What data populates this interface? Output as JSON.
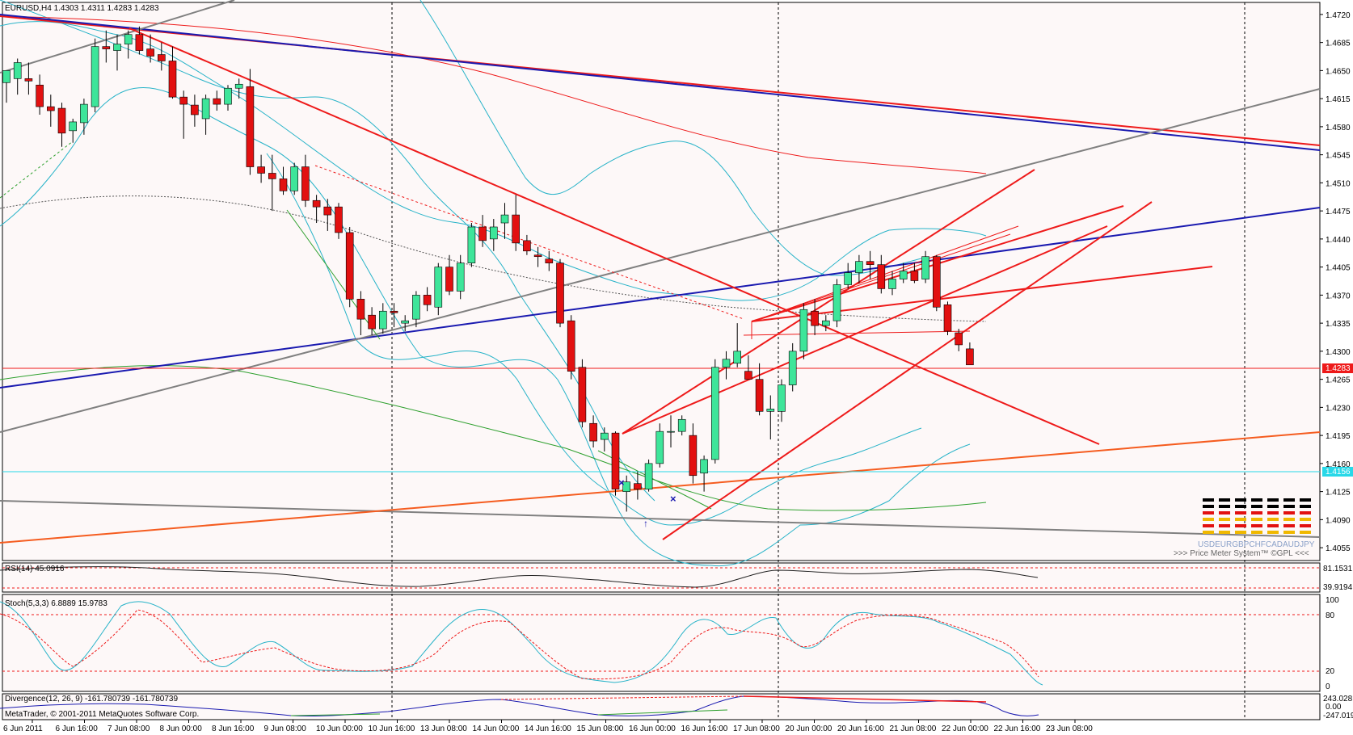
{
  "colors": {
    "background": "#ffffff",
    "grid": "#000000",
    "bull_candle": "#3ee59a",
    "bear_candle": "#e21010",
    "red_line": "#ee1a1a",
    "blue_line": "#1a1ab0",
    "gray_line": "#808080",
    "cyan_line": "#27b3c8",
    "green_line": "#2ea02e",
    "orange_line": "#f55c1f",
    "black_line": "#202020"
  },
  "chart_data": [
    {
      "type": "candlestick",
      "title": "EURUSD,H4  1.4303 1.4311 1.4283 1.4283",
      "symbol": "EURUSD",
      "timeframe": "H4",
      "ohlc_header": [
        1.4303,
        1.4311,
        1.4283,
        1.4283
      ],
      "last_price": "1.4283",
      "ylim": [
        1.4039,
        1.4735
      ],
      "y_ticks": [
        "1.4720",
        "1.4685",
        "1.4650",
        "1.4615",
        "1.4580",
        "1.4545",
        "1.4510",
        "1.4475",
        "1.4440",
        "1.4405",
        "1.4370",
        "1.4335",
        "1.4300",
        "1.4265",
        "1.4230",
        "1.4195",
        "1.4160",
        "1.4125",
        "1.4090",
        "1.4055"
      ],
      "x_labels": [
        "6 Jun 2011",
        "6 Jun 16:00",
        "7 Jun 08:00",
        "8 Jun 00:00",
        "8 Jun 16:00",
        "9 Jun 08:00",
        "10 Jun 00:00",
        "10 Jun 16:00",
        "13 Jun 08:00",
        "14 Jun 00:00",
        "14 Jun 16:00",
        "15 Jun 08:00",
        "16 Jun 00:00",
        "16 Jun 16:00",
        "17 Jun 08:00",
        "20 Jun 00:00",
        "20 Jun 16:00",
        "21 Jun 08:00",
        "22 Jun 00:00",
        "22 Jun 16:00",
        "23 Jun 08:00"
      ],
      "period_separators": [
        "6 Jun 16:00 – 7 Jun 08:00",
        "10 Jun 16:00",
        "17 Jun 08:00 – 20 Jun 00:00",
        "23 Jun"
      ],
      "candles": [
        {
          "o": 1.4635,
          "h": 1.465,
          "l": 1.461,
          "c": 1.465
        },
        {
          "o": 1.464,
          "h": 1.4665,
          "l": 1.462,
          "c": 1.466
        },
        {
          "o": 1.464,
          "h": 1.466,
          "l": 1.462,
          "c": 1.4637
        },
        {
          "o": 1.4632,
          "h": 1.4645,
          "l": 1.4595,
          "c": 1.4605
        },
        {
          "o": 1.4605,
          "h": 1.462,
          "l": 1.458,
          "c": 1.46
        },
        {
          "o": 1.4603,
          "h": 1.461,
          "l": 1.4555,
          "c": 1.4572
        },
        {
          "o": 1.4575,
          "h": 1.459,
          "l": 1.456,
          "c": 1.4586
        },
        {
          "o": 1.4585,
          "h": 1.4615,
          "l": 1.457,
          "c": 1.4608
        },
        {
          "o": 1.4605,
          "h": 1.469,
          "l": 1.4598,
          "c": 1.468
        },
        {
          "o": 1.468,
          "h": 1.47,
          "l": 1.466,
          "c": 1.4677
        },
        {
          "o": 1.4675,
          "h": 1.4695,
          "l": 1.465,
          "c": 1.4683
        },
        {
          "o": 1.4683,
          "h": 1.47,
          "l": 1.4665,
          "c": 1.4695
        },
        {
          "o": 1.4695,
          "h": 1.4705,
          "l": 1.467,
          "c": 1.4675
        },
        {
          "o": 1.4677,
          "h": 1.4695,
          "l": 1.466,
          "c": 1.4668
        },
        {
          "o": 1.467,
          "h": 1.4685,
          "l": 1.465,
          "c": 1.4662
        },
        {
          "o": 1.4662,
          "h": 1.468,
          "l": 1.4615,
          "c": 1.4617
        },
        {
          "o": 1.4617,
          "h": 1.4625,
          "l": 1.4565,
          "c": 1.4608
        },
        {
          "o": 1.4607,
          "h": 1.462,
          "l": 1.458,
          "c": 1.4595
        },
        {
          "o": 1.459,
          "h": 1.462,
          "l": 1.457,
          "c": 1.4615
        },
        {
          "o": 1.4615,
          "h": 1.4625,
          "l": 1.46,
          "c": 1.4608
        },
        {
          "o": 1.4608,
          "h": 1.4632,
          "l": 1.46,
          "c": 1.4628
        },
        {
          "o": 1.4628,
          "h": 1.464,
          "l": 1.4615,
          "c": 1.4633
        },
        {
          "o": 1.463,
          "h": 1.4652,
          "l": 1.452,
          "c": 1.453
        },
        {
          "o": 1.453,
          "h": 1.4545,
          "l": 1.451,
          "c": 1.4522
        },
        {
          "o": 1.4522,
          "h": 1.4545,
          "l": 1.4475,
          "c": 1.4515
        },
        {
          "o": 1.4515,
          "h": 1.453,
          "l": 1.4495,
          "c": 1.45
        },
        {
          "o": 1.45,
          "h": 1.4535,
          "l": 1.4495,
          "c": 1.453
        },
        {
          "o": 1.453,
          "h": 1.4545,
          "l": 1.448,
          "c": 1.4488
        },
        {
          "o": 1.4488,
          "h": 1.4495,
          "l": 1.446,
          "c": 1.448
        },
        {
          "o": 1.448,
          "h": 1.449,
          "l": 1.445,
          "c": 1.447
        },
        {
          "o": 1.448,
          "h": 1.4485,
          "l": 1.444,
          "c": 1.4448
        },
        {
          "o": 1.4448,
          "h": 1.4455,
          "l": 1.4355,
          "c": 1.4365
        },
        {
          "o": 1.4365,
          "h": 1.4375,
          "l": 1.432,
          "c": 1.434
        },
        {
          "o": 1.4345,
          "h": 1.4355,
          "l": 1.432,
          "c": 1.4328
        },
        {
          "o": 1.4328,
          "h": 1.436,
          "l": 1.4322,
          "c": 1.435
        },
        {
          "o": 1.435,
          "h": 1.436,
          "l": 1.433,
          "c": 1.4348
        },
        {
          "o": 1.4335,
          "h": 1.4345,
          "l": 1.4325,
          "c": 1.4338
        },
        {
          "o": 1.434,
          "h": 1.4375,
          "l": 1.433,
          "c": 1.437
        },
        {
          "o": 1.437,
          "h": 1.438,
          "l": 1.435,
          "c": 1.4358
        },
        {
          "o": 1.4355,
          "h": 1.441,
          "l": 1.4345,
          "c": 1.4405
        },
        {
          "o": 1.4405,
          "h": 1.442,
          "l": 1.437,
          "c": 1.4375
        },
        {
          "o": 1.4375,
          "h": 1.442,
          "l": 1.4365,
          "c": 1.441
        },
        {
          "o": 1.441,
          "h": 1.446,
          "l": 1.4405,
          "c": 1.4455
        },
        {
          "o": 1.4455,
          "h": 1.447,
          "l": 1.443,
          "c": 1.4438
        },
        {
          "o": 1.444,
          "h": 1.4465,
          "l": 1.4425,
          "c": 1.4455
        },
        {
          "o": 1.446,
          "h": 1.4485,
          "l": 1.444,
          "c": 1.447
        },
        {
          "o": 1.447,
          "h": 1.4495,
          "l": 1.4425,
          "c": 1.4435
        },
        {
          "o": 1.4438,
          "h": 1.4445,
          "l": 1.442,
          "c": 1.4425
        },
        {
          "o": 1.442,
          "h": 1.443,
          "l": 1.4405,
          "c": 1.4418
        },
        {
          "o": 1.4415,
          "h": 1.4425,
          "l": 1.44,
          "c": 1.441
        },
        {
          "o": 1.441,
          "h": 1.4415,
          "l": 1.433,
          "c": 1.4335
        },
        {
          "o": 1.4338,
          "h": 1.4345,
          "l": 1.4265,
          "c": 1.4275
        },
        {
          "o": 1.428,
          "h": 1.429,
          "l": 1.4205,
          "c": 1.4212
        },
        {
          "o": 1.421,
          "h": 1.422,
          "l": 1.418,
          "c": 1.4188
        },
        {
          "o": 1.419,
          "h": 1.4205,
          "l": 1.4175,
          "c": 1.4198
        },
        {
          "o": 1.4198,
          "h": 1.42,
          "l": 1.412,
          "c": 1.4128
        },
        {
          "o": 1.4125,
          "h": 1.4145,
          "l": 1.41,
          "c": 1.4137
        },
        {
          "o": 1.4135,
          "h": 1.415,
          "l": 1.4115,
          "c": 1.4128
        },
        {
          "o": 1.4128,
          "h": 1.4165,
          "l": 1.4125,
          "c": 1.416
        },
        {
          "o": 1.416,
          "h": 1.421,
          "l": 1.4155,
          "c": 1.42
        },
        {
          "o": 1.42,
          "h": 1.422,
          "l": 1.418,
          "c": 1.42
        },
        {
          "o": 1.42,
          "h": 1.422,
          "l": 1.4195,
          "c": 1.4215
        },
        {
          "o": 1.4195,
          "h": 1.421,
          "l": 1.4135,
          "c": 1.4145
        },
        {
          "o": 1.4148,
          "h": 1.417,
          "l": 1.4125,
          "c": 1.4165
        },
        {
          "o": 1.4165,
          "h": 1.429,
          "l": 1.416,
          "c": 1.428
        },
        {
          "o": 1.428,
          "h": 1.43,
          "l": 1.4265,
          "c": 1.429
        },
        {
          "o": 1.4285,
          "h": 1.4335,
          "l": 1.428,
          "c": 1.43
        },
        {
          "o": 1.4275,
          "h": 1.4295,
          "l": 1.4265,
          "c": 1.4265
        },
        {
          "o": 1.4265,
          "h": 1.4285,
          "l": 1.422,
          "c": 1.4225
        },
        {
          "o": 1.4225,
          "h": 1.4245,
          "l": 1.419,
          "c": 1.4228
        },
        {
          "o": 1.4225,
          "h": 1.4265,
          "l": 1.4212,
          "c": 1.4258
        },
        {
          "o": 1.4258,
          "h": 1.431,
          "l": 1.425,
          "c": 1.43
        },
        {
          "o": 1.43,
          "h": 1.436,
          "l": 1.429,
          "c": 1.4352
        },
        {
          "o": 1.435,
          "h": 1.4365,
          "l": 1.432,
          "c": 1.4332
        },
        {
          "o": 1.4332,
          "h": 1.4345,
          "l": 1.4325,
          "c": 1.4338
        },
        {
          "o": 1.4338,
          "h": 1.439,
          "l": 1.433,
          "c": 1.4383
        },
        {
          "o": 1.4383,
          "h": 1.441,
          "l": 1.4378,
          "c": 1.4398
        },
        {
          "o": 1.4398,
          "h": 1.442,
          "l": 1.4385,
          "c": 1.4412
        },
        {
          "o": 1.4412,
          "h": 1.4425,
          "l": 1.439,
          "c": 1.4408
        },
        {
          "o": 1.4408,
          "h": 1.442,
          "l": 1.4372,
          "c": 1.4378
        },
        {
          "o": 1.4378,
          "h": 1.44,
          "l": 1.437,
          "c": 1.439
        },
        {
          "o": 1.439,
          "h": 1.441,
          "l": 1.4385,
          "c": 1.44
        },
        {
          "o": 1.44,
          "h": 1.441,
          "l": 1.4385,
          "c": 1.4388
        },
        {
          "o": 1.439,
          "h": 1.4425,
          "l": 1.4385,
          "c": 1.4418
        },
        {
          "o": 1.4418,
          "h": 1.442,
          "l": 1.435,
          "c": 1.4355
        },
        {
          "o": 1.4358,
          "h": 1.4362,
          "l": 1.432,
          "c": 1.4325
        },
        {
          "o": 1.4323,
          "h": 1.4328,
          "l": 1.43,
          "c": 1.4308
        },
        {
          "o": 1.4303,
          "h": 1.4311,
          "l": 1.4283,
          "c": 1.4283
        }
      ]
    },
    {
      "type": "line",
      "title": "RSI(14) 45.0916",
      "ylim": [
        20,
        80
      ],
      "y_ticks": [
        "81.1531",
        "39.9194"
      ]
    },
    {
      "type": "line",
      "title": "Stoch(5,3,3) 6.8889 15.9783",
      "ylim": [
        0,
        100
      ],
      "y_ticks": [
        "100",
        "80",
        "20",
        "0"
      ]
    },
    {
      "type": "line",
      "title": "Divergence(12, 26, 9) -161.780739 -161.780739",
      "y_ticks": [
        "243.028",
        "0.00",
        "-247.019"
      ]
    }
  ],
  "labels": {
    "copyright": "MetaTrader, © 2001-2011 MetaQuotes Software Corp.",
    "price_line_label": "1.4283",
    "level_line_label": "1.4156",
    "price_meter_pairs": "USDEURGBPCHFCADAUDJPY",
    "price_meter_caption": ">>> Price Meter System™ ©GPL <<<"
  }
}
